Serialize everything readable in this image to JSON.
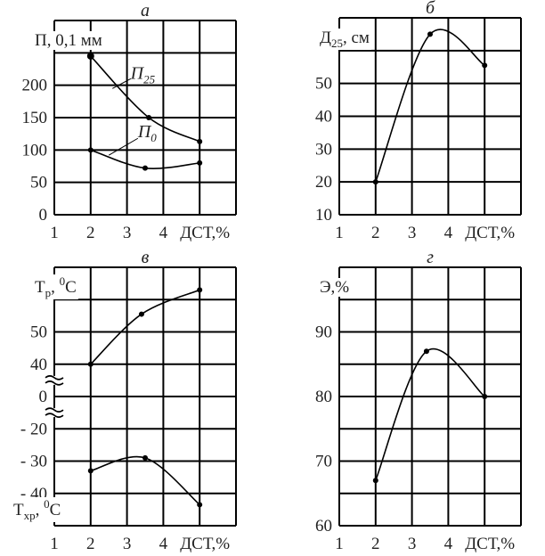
{
  "chart_data": [
    {
      "type": "line",
      "title": "а",
      "ylabel": [
        {
          "t": "П, 0,1 мм"
        }
      ],
      "xlabel": "ДСТ,%",
      "x_ticks": [
        "1",
        "2",
        "3",
        "4"
      ],
      "y_grid": [
        0,
        50,
        100,
        150,
        200,
        250,
        300
      ],
      "y_tick_labels": [
        "0",
        "50",
        "100",
        "150",
        "200"
      ],
      "y_tick_values": [
        0,
        50,
        100,
        150,
        200
      ],
      "series": [
        {
          "name": [
            {
              "t": "П"
            },
            {
              "t": "25",
              "s": "sub"
            }
          ],
          "x": [
            2,
            3.6,
            5
          ],
          "y": [
            245,
            150,
            113
          ]
        },
        {
          "name": [
            {
              "t": "П"
            },
            {
              "t": "0",
              "s": "sub"
            }
          ],
          "x": [
            2,
            3.5,
            5
          ],
          "y": [
            100,
            72,
            80
          ]
        }
      ]
    },
    {
      "type": "line",
      "title": "б",
      "ylabel": [
        {
          "t": "Д"
        },
        {
          "t": "25",
          "s": "sub"
        },
        {
          "t": ", см"
        }
      ],
      "xlabel": "ДСТ,%",
      "x_ticks": [
        "1",
        "2",
        "3",
        "4"
      ],
      "y_grid": [
        10,
        20,
        30,
        40,
        50,
        60,
        70
      ],
      "y_tick_labels": [
        "10",
        "20",
        "30",
        "40",
        "50"
      ],
      "y_tick_values": [
        10,
        20,
        30,
        40,
        50
      ],
      "series": [
        {
          "name": [],
          "x": [
            2,
            3.5,
            5
          ],
          "y": [
            20,
            65,
            55.5
          ]
        }
      ]
    },
    {
      "type": "line",
      "title": "в",
      "ylabel": [
        {
          "t": "Т"
        },
        {
          "t": "р",
          "s": "sub"
        },
        {
          "t": ", "
        },
        {
          "t": "0",
          "s": "sup"
        },
        {
          "t": "С"
        }
      ],
      "ylabel2": [
        {
          "t": "Т"
        },
        {
          "t": "хр",
          "s": "sub"
        },
        {
          "t": ", "
        },
        {
          "t": "0",
          "s": "sup"
        },
        {
          "t": "С"
        }
      ],
      "xlabel": "ДСТ,%",
      "x_ticks": [
        "1",
        "2",
        "3",
        "4"
      ],
      "y_grid": [
        -50,
        -40,
        -30,
        -20,
        0,
        40,
        50,
        60,
        70
      ],
      "y_tick_labels": [
        "- 40",
        "- 30",
        "- 20",
        "0",
        "40",
        "50"
      ],
      "y_tick_values": [
        -40,
        -30,
        -20,
        0,
        40,
        50
      ],
      "axis_breaks": [
        20,
        -10
      ],
      "series": [
        {
          "name": [],
          "x": [
            2,
            3.4,
            5
          ],
          "y": [
            40,
            55.5,
            63
          ]
        },
        {
          "name": [],
          "x": [
            2,
            3.5,
            5
          ],
          "y": [
            -33,
            -29,
            -43.5
          ]
        }
      ]
    },
    {
      "type": "line",
      "title": "г",
      "ylabel": [
        {
          "t": "Э,%"
        }
      ],
      "xlabel": "ДСТ,%",
      "x_ticks": [
        "1",
        "2",
        "3",
        "4"
      ],
      "y_grid": [
        60,
        65,
        70,
        75,
        80,
        85,
        90,
        95,
        100
      ],
      "y_tick_labels": [
        "60",
        "70",
        "80",
        "90"
      ],
      "y_tick_values": [
        60,
        70,
        80,
        90
      ],
      "series": [
        {
          "name": [],
          "x": [
            2,
            3.4,
            5
          ],
          "y": [
            67,
            87,
            80
          ]
        }
      ]
    }
  ]
}
